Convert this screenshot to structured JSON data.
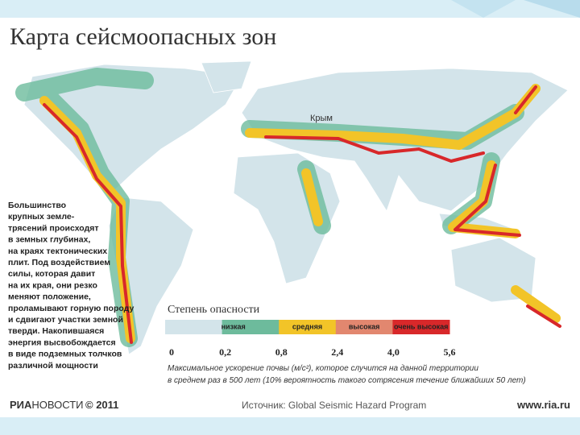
{
  "header": {
    "title": "Карта сейсмоопасных зон"
  },
  "map": {
    "place_label": "Крым"
  },
  "sidebar": {
    "lines": [
      "Большинство",
      "крупных земле-",
      "трясений происходят",
      "в земных глубинах,",
      "на краях тектонических",
      "плит. Под воздействием",
      "силы, которая давит",
      "на их края, они резко",
      "меняют положение,",
      "проламывают горную породу",
      "и сдвигают участки земной",
      "тверди. Накопившаяся",
      "энергия высвобождается",
      "в виде подземных толчков",
      "различной мощности"
    ]
  },
  "legend": {
    "title": "Степень опасности",
    "levels": [
      {
        "label": "низкая",
        "colors": [
          "#d3e4ea",
          "#6dbb9c"
        ]
      },
      {
        "label": "средняя",
        "colors": [
          "#f2c428"
        ]
      },
      {
        "label": "высокая",
        "colors": [
          "#e2876f"
        ]
      },
      {
        "label": "очень высокая",
        "colors": [
          "#d8282a"
        ]
      }
    ],
    "ticks": [
      "0",
      "0,2",
      "0,8",
      "2,4",
      "4,0",
      "5,6"
    ],
    "note": [
      "Максимальное ускорение почвы (м/с²), которое случится на данной территории",
      "в среднем раз в 500 лет (10% вероятность такого сотрясения течение ближайших 50 лет)"
    ]
  },
  "footer": {
    "brand_bold": "РИА",
    "brand_rest": "НОВОСТИ",
    "year": "© 2011",
    "source": "Источник: Global Seismic Hazard Program",
    "site": "www.ria.ru"
  }
}
